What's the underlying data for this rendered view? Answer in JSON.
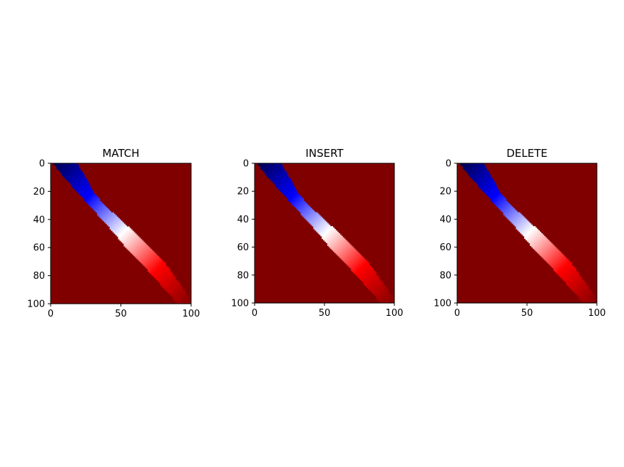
{
  "chart_data": [
    {
      "type": "heatmap",
      "title": "MATCH",
      "xlim": [
        0,
        100
      ],
      "ylim": [
        100,
        0
      ],
      "xticks": [
        0,
        50,
        100
      ],
      "yticks": [
        0,
        20,
        40,
        60,
        80,
        100
      ],
      "colormap": [
        "#00004c",
        "#0000ff",
        "#ffffff",
        "#ff0000",
        "#800000"
      ],
      "background_color": "#800000",
      "band": {
        "center_rows": [
          0,
          10,
          20,
          30,
          40,
          50,
          60,
          70,
          80,
          90,
          100
        ],
        "center_cols": [
          10,
          17,
          24,
          33,
          43,
          53,
          62,
          72,
          80,
          88,
          96
        ],
        "halfwidths": [
          8,
          7,
          5,
          5,
          6,
          7,
          8,
          8,
          7,
          6,
          5
        ]
      }
    },
    {
      "type": "heatmap",
      "title": "INSERT",
      "xlim": [
        0,
        100
      ],
      "ylim": [
        100,
        0
      ],
      "xticks": [
        0,
        50,
        100
      ],
      "yticks": [
        0,
        20,
        40,
        60,
        80,
        100
      ],
      "colormap": [
        "#00004c",
        "#0000ff",
        "#ffffff",
        "#ff0000",
        "#800000"
      ],
      "background_color": "#800000",
      "band": {
        "center_rows": [
          0,
          10,
          20,
          30,
          40,
          50,
          60,
          70,
          80,
          90,
          100
        ],
        "center_cols": [
          10,
          17,
          24,
          33,
          43,
          53,
          62,
          72,
          80,
          88,
          96
        ],
        "halfwidths": [
          8,
          7,
          5,
          5,
          6,
          7,
          8,
          8,
          7,
          6,
          5
        ]
      }
    },
    {
      "type": "heatmap",
      "title": "DELETE",
      "xlim": [
        0,
        100
      ],
      "ylim": [
        100,
        0
      ],
      "xticks": [
        0,
        50,
        100
      ],
      "yticks": [
        0,
        20,
        40,
        60,
        80,
        100
      ],
      "colormap": [
        "#00004c",
        "#0000ff",
        "#ffffff",
        "#ff0000",
        "#800000"
      ],
      "background_color": "#800000",
      "band": {
        "center_rows": [
          0,
          10,
          20,
          30,
          40,
          50,
          60,
          70,
          80,
          90,
          100
        ],
        "center_cols": [
          10,
          17,
          24,
          33,
          43,
          53,
          62,
          72,
          80,
          88,
          96
        ],
        "halfwidths": [
          8,
          7,
          5,
          5,
          6,
          7,
          8,
          8,
          7,
          6,
          5
        ]
      }
    }
  ]
}
